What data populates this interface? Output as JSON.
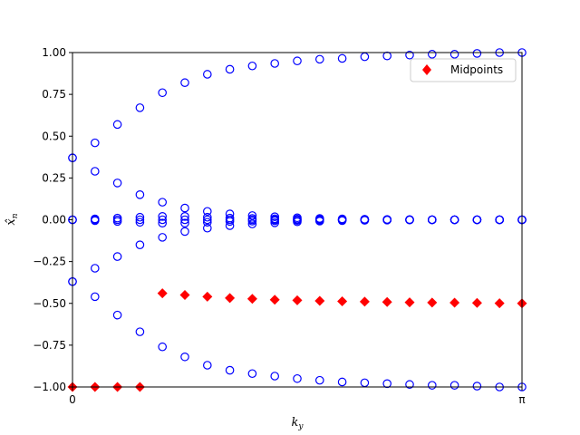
{
  "chart_data": {
    "type": "scatter",
    "xlabel": "k_y",
    "ylabel": "x̂_n",
    "xlim": [
      0,
      3.14159
    ],
    "ylim": [
      -1.0,
      1.0
    ],
    "grid": false,
    "legend_position": "top-right",
    "x_ticks": [
      {
        "value": 0,
        "label": "0"
      },
      {
        "value": 3.14159,
        "label": "π"
      }
    ],
    "y_ticks": [
      {
        "value": 1.0,
        "label": "1.00"
      },
      {
        "value": 0.75,
        "label": "0.75"
      },
      {
        "value": 0.5,
        "label": "0.50"
      },
      {
        "value": 0.25,
        "label": "0.25"
      },
      {
        "value": 0.0,
        "label": "0.00"
      },
      {
        "value": -0.25,
        "label": "−0.25"
      },
      {
        "value": -0.5,
        "label": "−0.50"
      },
      {
        "value": -0.75,
        "label": "−0.75"
      },
      {
        "value": -1.0,
        "label": "−1.00"
      }
    ],
    "x": [
      0.0,
      0.15708,
      0.31416,
      0.47124,
      0.62832,
      0.7854,
      0.94248,
      1.09956,
      1.25664,
      1.41372,
      1.5708,
      1.72788,
      1.88496,
      2.04204,
      2.19911,
      2.35619,
      2.51327,
      2.67035,
      2.82743,
      2.98451,
      3.14159
    ],
    "series": [
      {
        "name": "",
        "marker": "open-circle",
        "color": "#0000ff",
        "bands": [
          [
            0.37,
            0.46,
            0.57,
            0.67,
            0.76,
            0.82,
            0.87,
            0.9,
            0.92,
            0.935,
            0.95,
            0.96,
            0.965,
            0.975,
            0.98,
            0.985,
            0.99,
            0.99,
            0.995,
            1.0,
            1.0
          ],
          [
            0.37,
            0.29,
            0.22,
            0.15,
            0.105,
            0.07,
            0.05,
            0.035,
            0.025,
            0.018,
            0.012,
            0.008,
            0.005,
            0.003,
            0.002,
            0.001,
            0.0,
            0.0,
            0.0,
            0.0,
            0.0
          ],
          [
            0.0,
            0.005,
            0.01,
            0.015,
            0.02,
            0.02,
            0.015,
            0.01,
            0.008,
            0.006,
            0.004,
            0.003,
            0.002,
            0.001,
            0.0,
            0.0,
            0.0,
            0.0,
            0.0,
            0.0,
            0.0
          ],
          [
            0.0,
            0.0,
            0.0,
            0.0,
            0.0,
            0.0,
            0.0,
            0.0,
            0.0,
            0.0,
            0.0,
            0.0,
            0.0,
            0.0,
            0.0,
            0.0,
            0.0,
            0.0,
            0.0,
            0.0,
            0.0
          ],
          [
            0.0,
            -0.005,
            -0.01,
            -0.015,
            -0.02,
            -0.02,
            -0.015,
            -0.01,
            -0.008,
            -0.006,
            -0.004,
            -0.003,
            -0.002,
            -0.001,
            0.0,
            0.0,
            0.0,
            0.0,
            0.0,
            0.0,
            0.0
          ],
          [
            -0.37,
            -0.29,
            -0.22,
            -0.15,
            -0.105,
            -0.07,
            -0.05,
            -0.035,
            -0.025,
            -0.018,
            -0.012,
            -0.008,
            -0.005,
            -0.003,
            -0.002,
            -0.001,
            0.0,
            0.0,
            0.0,
            0.0,
            0.0
          ],
          [
            -0.37,
            -0.46,
            -0.57,
            -0.67,
            -0.76,
            -0.82,
            -0.87,
            -0.9,
            -0.92,
            -0.935,
            -0.95,
            -0.96,
            -0.97,
            -0.975,
            -0.98,
            -0.985,
            -0.99,
            -0.99,
            -0.995,
            -1.0,
            -1.0
          ]
        ]
      },
      {
        "name": "Midpoints",
        "marker": "diamond",
        "color": "#ff0000",
        "points": [
          {
            "x": 0.0,
            "y": -1.0
          },
          {
            "x": 0.15708,
            "y": -1.0
          },
          {
            "x": 0.31416,
            "y": -1.0
          },
          {
            "x": 0.47124,
            "y": -1.0
          },
          {
            "x": 0.62832,
            "y": -0.44
          },
          {
            "x": 0.7854,
            "y": -0.45
          },
          {
            "x": 0.94248,
            "y": -0.46
          },
          {
            "x": 1.09956,
            "y": -0.468
          },
          {
            "x": 1.25664,
            "y": -0.473
          },
          {
            "x": 1.41372,
            "y": -0.478
          },
          {
            "x": 1.5708,
            "y": -0.482
          },
          {
            "x": 1.72788,
            "y": -0.485
          },
          {
            "x": 1.88496,
            "y": -0.488
          },
          {
            "x": 2.04204,
            "y": -0.49
          },
          {
            "x": 2.19911,
            "y": -0.492
          },
          {
            "x": 2.35619,
            "y": -0.494
          },
          {
            "x": 2.51327,
            "y": -0.495
          },
          {
            "x": 2.67035,
            "y": -0.496
          },
          {
            "x": 2.82743,
            "y": -0.497
          },
          {
            "x": 2.98451,
            "y": -0.499
          },
          {
            "x": 3.14159,
            "y": -0.5
          }
        ]
      }
    ],
    "legend": [
      {
        "label": "Midpoints",
        "marker": "diamond",
        "color": "#ff0000"
      }
    ]
  }
}
